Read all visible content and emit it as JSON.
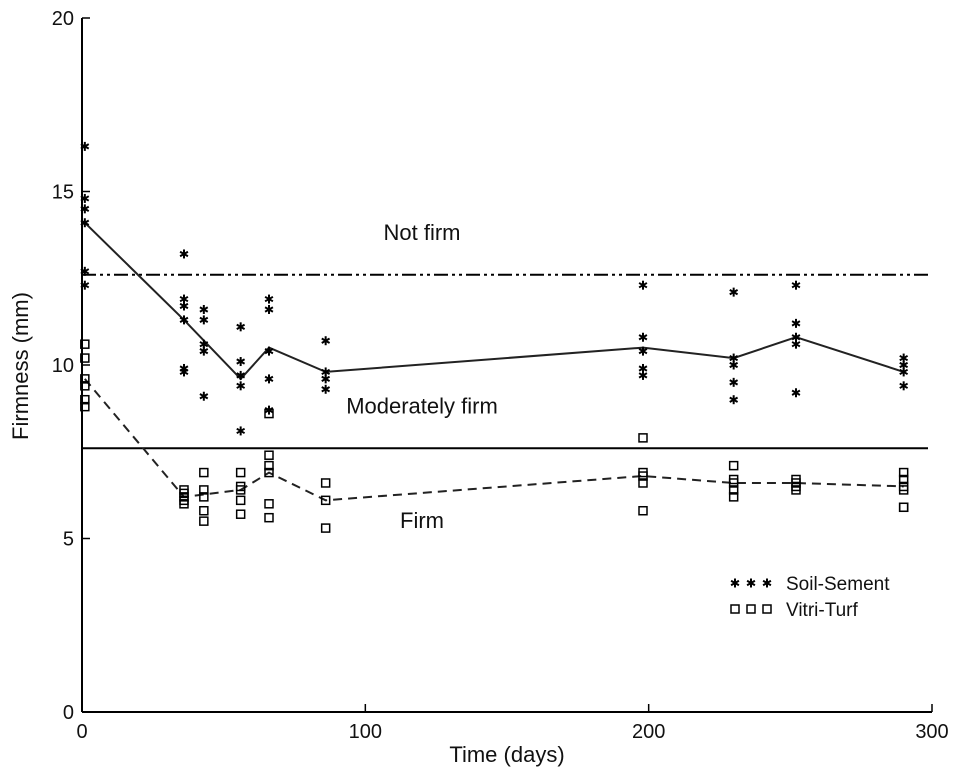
{
  "chart_data": {
    "type": "scatter",
    "title": "",
    "xlabel": "Time (days)",
    "ylabel": "Firmness (mm)",
    "xlim": [
      0,
      300
    ],
    "ylim": [
      0,
      20
    ],
    "xticks": [
      0,
      100,
      200,
      300
    ],
    "yticks": [
      0,
      5,
      10,
      15,
      20
    ],
    "x_tick_labels": [
      "0",
      "100",
      "200",
      "300"
    ],
    "y_tick_labels": [
      "0",
      "5",
      "10",
      "15",
      "20"
    ],
    "grid": false,
    "legend_position": "bottom-right",
    "thresholds": [
      {
        "label": "Not firm",
        "value": 12.6,
        "style": "dash-dot-dot"
      },
      {
        "label": "Moderately firm",
        "value": 7.6,
        "style": "solid"
      }
    ],
    "zone_labels": [
      {
        "text": "Not firm",
        "x": 120,
        "y": 13.6
      },
      {
        "text": "Moderately firm",
        "x": 120,
        "y": 8.6
      },
      {
        "text": "Firm",
        "x": 120,
        "y": 5.3
      }
    ],
    "series": [
      {
        "name": "Soil-Sement",
        "marker": "asterisk",
        "line_style": "solid",
        "points": [
          [
            1,
            16.3
          ],
          [
            1,
            14.8
          ],
          [
            1,
            14.5
          ],
          [
            1,
            14.1
          ],
          [
            1,
            12.7
          ],
          [
            1,
            12.3
          ],
          [
            36,
            13.2
          ],
          [
            36,
            11.9
          ],
          [
            36,
            11.7
          ],
          [
            36,
            11.3
          ],
          [
            36,
            9.9
          ],
          [
            36,
            9.8
          ],
          [
            43,
            11.6
          ],
          [
            43,
            11.3
          ],
          [
            43,
            10.6
          ],
          [
            43,
            10.4
          ],
          [
            43,
            9.1
          ],
          [
            56,
            11.1
          ],
          [
            56,
            10.1
          ],
          [
            56,
            9.7
          ],
          [
            56,
            9.4
          ],
          [
            56,
            8.1
          ],
          [
            66,
            11.9
          ],
          [
            66,
            11.6
          ],
          [
            66,
            10.4
          ],
          [
            66,
            9.6
          ],
          [
            66,
            8.7
          ],
          [
            86,
            10.7
          ],
          [
            86,
            9.8
          ],
          [
            86,
            9.6
          ],
          [
            86,
            9.3
          ],
          [
            198,
            12.3
          ],
          [
            198,
            10.8
          ],
          [
            198,
            10.4
          ],
          [
            198,
            9.9
          ],
          [
            198,
            9.7
          ],
          [
            230,
            12.1
          ],
          [
            230,
            10.2
          ],
          [
            230,
            10.0
          ],
          [
            230,
            9.5
          ],
          [
            230,
            9.0
          ],
          [
            252,
            12.3
          ],
          [
            252,
            11.2
          ],
          [
            252,
            10.8
          ],
          [
            252,
            10.6
          ],
          [
            252,
            9.2
          ],
          [
            290,
            10.2
          ],
          [
            290,
            10.0
          ],
          [
            290,
            9.8
          ],
          [
            290,
            9.4
          ]
        ],
        "mean_line": [
          [
            1,
            14.1
          ],
          [
            36,
            11.3
          ],
          [
            56,
            9.6
          ],
          [
            66,
            10.5
          ],
          [
            86,
            9.8
          ],
          [
            198,
            10.5
          ],
          [
            230,
            10.2
          ],
          [
            252,
            10.8
          ],
          [
            290,
            9.8
          ]
        ]
      },
      {
        "name": "Vitri-Turf",
        "marker": "square",
        "line_style": "dashed",
        "points": [
          [
            1,
            10.6
          ],
          [
            1,
            10.2
          ],
          [
            1,
            9.6
          ],
          [
            1,
            9.4
          ],
          [
            1,
            9.0
          ],
          [
            1,
            8.8
          ],
          [
            36,
            6.4
          ],
          [
            36,
            6.3
          ],
          [
            36,
            6.2
          ],
          [
            36,
            6.1
          ],
          [
            36,
            6.0
          ],
          [
            43,
            6.9
          ],
          [
            43,
            6.4
          ],
          [
            43,
            6.2
          ],
          [
            43,
            5.8
          ],
          [
            43,
            5.5
          ],
          [
            56,
            6.9
          ],
          [
            56,
            6.5
          ],
          [
            56,
            6.4
          ],
          [
            56,
            6.1
          ],
          [
            56,
            5.7
          ],
          [
            66,
            8.6
          ],
          [
            66,
            7.4
          ],
          [
            66,
            7.1
          ],
          [
            66,
            6.9
          ],
          [
            66,
            6.0
          ],
          [
            66,
            5.6
          ],
          [
            86,
            6.6
          ],
          [
            86,
            6.1
          ],
          [
            86,
            5.3
          ],
          [
            198,
            7.9
          ],
          [
            198,
            6.9
          ],
          [
            198,
            6.8
          ],
          [
            198,
            6.6
          ],
          [
            198,
            5.8
          ],
          [
            230,
            7.1
          ],
          [
            230,
            6.7
          ],
          [
            230,
            6.6
          ],
          [
            230,
            6.4
          ],
          [
            230,
            6.2
          ],
          [
            252,
            6.7
          ],
          [
            252,
            6.6
          ],
          [
            252,
            6.5
          ],
          [
            252,
            6.4
          ],
          [
            290,
            6.9
          ],
          [
            290,
            6.7
          ],
          [
            290,
            6.5
          ],
          [
            290,
            6.4
          ],
          [
            290,
            5.9
          ],
          [
            290,
            5.9
          ]
        ],
        "mean_line": [
          [
            1,
            9.6
          ],
          [
            36,
            6.2
          ],
          [
            56,
            6.4
          ],
          [
            66,
            6.9
          ],
          [
            86,
            6.1
          ],
          [
            198,
            6.8
          ],
          [
            230,
            6.6
          ],
          [
            252,
            6.6
          ],
          [
            290,
            6.5
          ]
        ]
      }
    ]
  },
  "legend": {
    "items": [
      {
        "label": "Soil-Sement",
        "marker": "asterisk"
      },
      {
        "label": "Vitri-Turf",
        "marker": "square"
      }
    ]
  },
  "colors": {
    "axis": "#000000",
    "series": "#222222",
    "background": "#ffffff"
  }
}
